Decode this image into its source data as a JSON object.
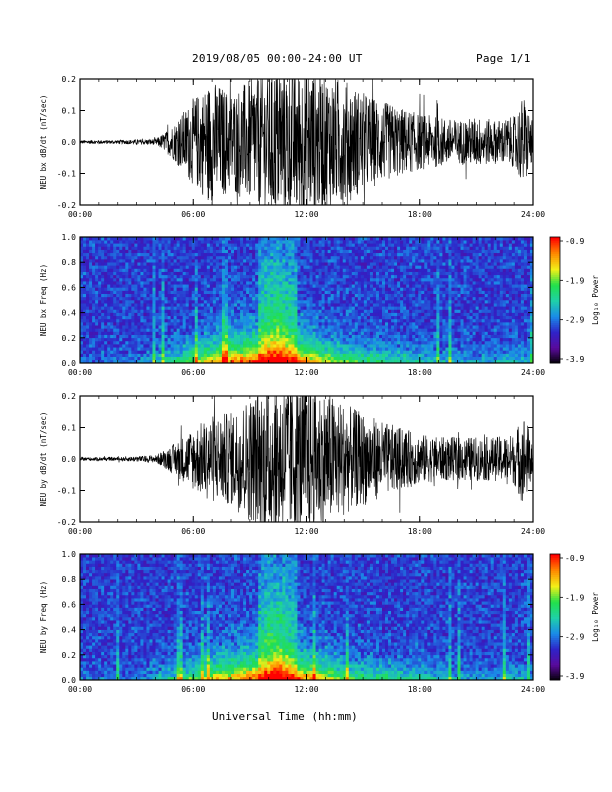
{
  "header": {
    "title": "2019/08/05  00:00-24:00 UT",
    "page": "Page 1/1"
  },
  "x_axis_title": "Universal Time (hh:mm)",
  "colors": {
    "waveform": "#000000",
    "colorbar": [
      "#000000",
      "#5a0a9c",
      "#2f23c8",
      "#1a8be8",
      "#1fd0a8",
      "#22e04a",
      "#f2f018",
      "#ff8a00",
      "#ff0000"
    ]
  },
  "chart_data": [
    {
      "type": "line",
      "name": "bx-dbdt",
      "ylabel": "NEU bx dB/dt (nT/sec)",
      "xlim": [
        "00:00",
        "24:00"
      ],
      "ylim": [
        -0.2,
        0.2
      ],
      "x_ticks": [
        "00:00",
        "06:00",
        "12:00",
        "18:00",
        "24:00"
      ],
      "y_ticks": [
        "-0.2",
        "-0.1",
        "0.0",
        "0.1",
        "0.2"
      ],
      "envelope": {
        "hours": [
          0,
          2,
          4,
          4.5,
          5,
          6,
          7,
          8,
          9,
          9.5,
          10,
          11,
          12,
          13,
          14,
          14.5,
          15,
          16,
          17,
          18,
          19,
          20,
          21,
          22,
          23,
          23.5,
          24
        ],
        "amplitude": [
          0.006,
          0.006,
          0.01,
          0.03,
          0.06,
          0.14,
          0.2,
          0.16,
          0.2,
          0.22,
          0.25,
          0.25,
          0.25,
          0.22,
          0.2,
          0.18,
          0.16,
          0.13,
          0.11,
          0.09,
          0.08,
          0.07,
          0.08,
          0.07,
          0.08,
          0.15,
          0.06
        ]
      }
    },
    {
      "type": "heatmap",
      "name": "bx-spectrogram",
      "ylabel": "NEU bx Freq (Hz)",
      "xlim": [
        "00:00",
        "24:00"
      ],
      "ylim": [
        0,
        1.0
      ],
      "x_ticks": [
        "00:00",
        "06:00",
        "12:00",
        "18:00",
        "24:00"
      ],
      "y_ticks": [
        "0.0",
        "0.2",
        "0.4",
        "0.6",
        "0.8",
        "1.0"
      ],
      "colorbar": {
        "label": "Log₁₀ Power",
        "ticks": [
          "-0.9",
          "-1.9",
          "-2.9",
          "-3.9"
        ],
        "range": [
          -3.9,
          -0.9
        ]
      },
      "low_freq_power_by_hour": {
        "hours": [
          0,
          3,
          4.5,
          6,
          7,
          8,
          9,
          10,
          10.5,
          11,
          12,
          13,
          14,
          15,
          16,
          17,
          18,
          19,
          20,
          21,
          22,
          23,
          24
        ],
        "strength": [
          0.1,
          0.1,
          0.3,
          0.5,
          0.65,
          0.75,
          0.8,
          0.95,
          1.0,
          0.9,
          0.75,
          0.6,
          0.5,
          0.42,
          0.4,
          0.35,
          0.3,
          0.25,
          0.22,
          0.2,
          0.2,
          0.3,
          0.15
        ]
      }
    },
    {
      "type": "line",
      "name": "by-dbdt",
      "ylabel": "NEU by dB/dt (nT/sec)",
      "xlim": [
        "00:00",
        "24:00"
      ],
      "ylim": [
        -0.2,
        0.2
      ],
      "x_ticks": [
        "00:00",
        "06:00",
        "12:00",
        "18:00",
        "24:00"
      ],
      "y_ticks": [
        "-0.2",
        "-0.1",
        "0.0",
        "0.1",
        "0.2"
      ],
      "envelope": {
        "hours": [
          0,
          2,
          4,
          4.5,
          5,
          6,
          7,
          8,
          9,
          9.5,
          10,
          11,
          12,
          13,
          14,
          14.5,
          15,
          16,
          17,
          18,
          19,
          20,
          21,
          22,
          23,
          23.5,
          24
        ],
        "amplitude": [
          0.006,
          0.006,
          0.012,
          0.03,
          0.05,
          0.1,
          0.14,
          0.15,
          0.2,
          0.22,
          0.25,
          0.25,
          0.24,
          0.22,
          0.18,
          0.16,
          0.15,
          0.12,
          0.1,
          0.08,
          0.07,
          0.07,
          0.07,
          0.07,
          0.08,
          0.15,
          0.06
        ]
      }
    },
    {
      "type": "heatmap",
      "name": "by-spectrogram",
      "ylabel": "NEU by Freq (Hz)",
      "xlim": [
        "00:00",
        "24:00"
      ],
      "ylim": [
        0,
        1.0
      ],
      "x_ticks": [
        "00:00",
        "06:00",
        "12:00",
        "18:00",
        "24:00"
      ],
      "y_ticks": [
        "0.0",
        "0.2",
        "0.4",
        "0.6",
        "0.8",
        "1.0"
      ],
      "colorbar": {
        "label": "Log₁₀ Power",
        "ticks": [
          "-0.9",
          "-1.9",
          "-2.9",
          "-3.9"
        ],
        "range": [
          -3.9,
          -0.9
        ]
      },
      "low_freq_power_by_hour": {
        "hours": [
          0,
          3,
          4.5,
          6,
          7,
          8,
          9,
          10,
          10.5,
          11,
          12,
          13,
          14,
          15,
          16,
          17,
          18,
          19,
          20,
          21,
          22,
          23,
          24
        ],
        "strength": [
          0.1,
          0.1,
          0.28,
          0.45,
          0.6,
          0.7,
          0.78,
          0.92,
          1.0,
          0.88,
          0.72,
          0.6,
          0.5,
          0.42,
          0.38,
          0.34,
          0.3,
          0.26,
          0.22,
          0.2,
          0.2,
          0.3,
          0.15
        ]
      }
    }
  ]
}
